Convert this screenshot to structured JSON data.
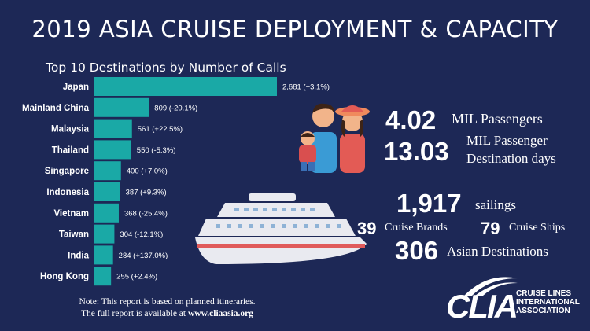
{
  "header": {
    "title": "2019 ASIA CRUISE DEPLOYMENT & CAPACITY"
  },
  "chart_data": {
    "type": "bar",
    "orientation": "horizontal",
    "title": "Top 10 Destinations by Number of Calls",
    "categories": [
      "Japan",
      "Mainland China",
      "Malaysia",
      "Thailand",
      "Singapore",
      "Indonesia",
      "Vietnam",
      "Taiwan",
      "India",
      "Hong Kong"
    ],
    "values": [
      2681,
      809,
      561,
      550,
      400,
      387,
      368,
      304,
      284,
      255
    ],
    "data_labels": [
      "2,681 (+3.1%)",
      "809 (-20.1%)",
      "561 (+22.5%)",
      "550 (-5.3%)",
      "400 (+7.0%)",
      "387 (+9.3%)",
      "368 (-25.4%)",
      "304 (-12.1%)",
      "284 (+137.0%)",
      "255 (+2.4%)"
    ],
    "xlim": [
      0,
      2681
    ],
    "grid": false,
    "bar_color": "#1aa9a6"
  },
  "stats": {
    "passengers": {
      "value": "4.02",
      "label": "MIL Passengers"
    },
    "destination_days": {
      "value": "13.03",
      "label_line1": "MIL Passenger",
      "label_line2": "Destination days"
    },
    "sailings": {
      "value": "1,917",
      "label": "sailings"
    },
    "brands": {
      "value": "39",
      "label": "Cruise Brands"
    },
    "ships": {
      "value": "79",
      "label": "Cruise Ships"
    },
    "destinations": {
      "value": "306",
      "label": "Asian Destinations"
    }
  },
  "note": {
    "line1": "Note: This report is based on planned itineraries.",
    "line2_prefix": "The full report is available at",
    "url": "www.cliaasia.org"
  },
  "logo": {
    "word": "CLIA",
    "line1": "CRUISE LINES",
    "line2": "INTERNATIONAL",
    "line3": "ASSOCIATION"
  },
  "colors": {
    "background": "#1d2856",
    "bar": "#1aa9a6",
    "ship_hull": "#e9eaf0",
    "ship_stripe": "#e05a5a"
  }
}
